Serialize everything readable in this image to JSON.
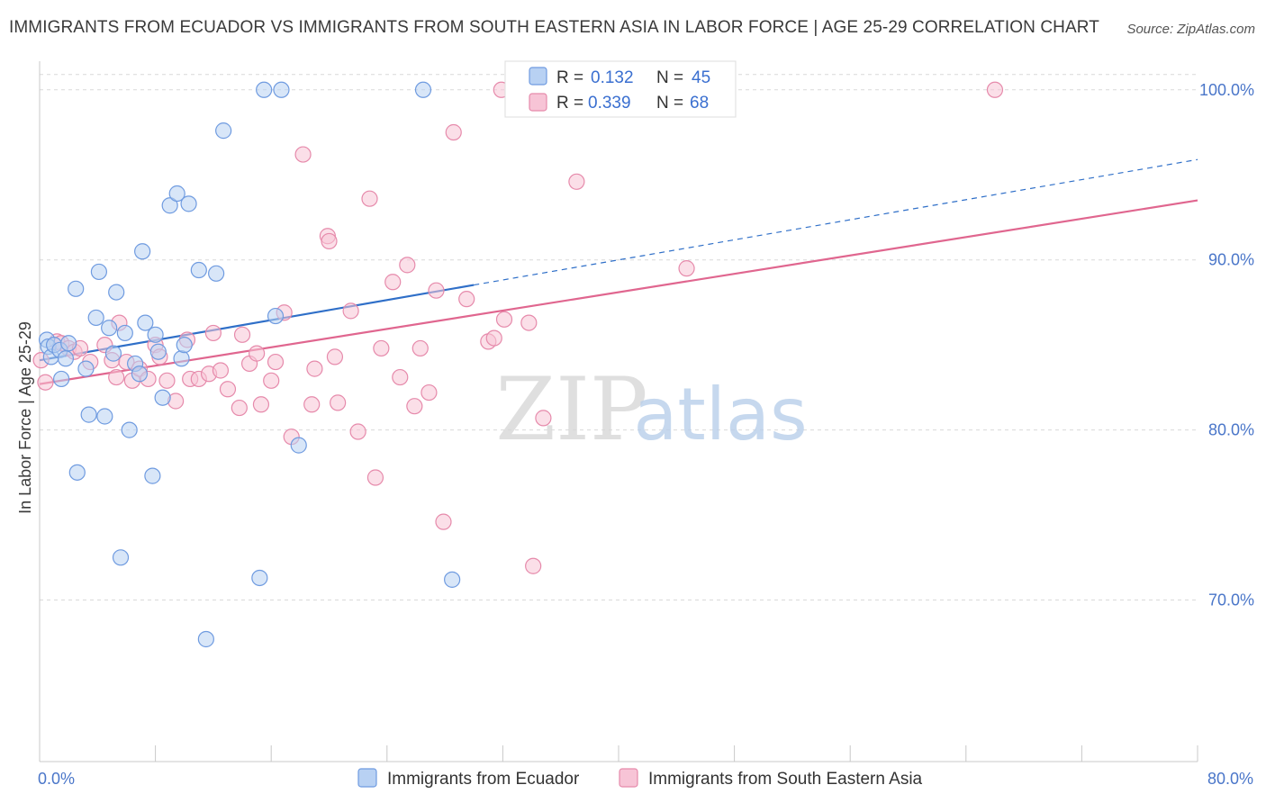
{
  "header": {
    "title": "IMMIGRANTS FROM ECUADOR VS IMMIGRANTS FROM SOUTH EASTERN ASIA IN LABOR FORCE | AGE 25-29 CORRELATION CHART",
    "source": "Source: ZipAtlas.com"
  },
  "watermark": {
    "zip": "ZIP",
    "atlas": "atlas"
  },
  "colors": {
    "ecuador_fill": "#b8d1f3",
    "ecuador_stroke": "#6f9be0",
    "ecuador_line": "#2f6fc8",
    "sea_fill": "#f7c4d6",
    "sea_stroke": "#e68aab",
    "sea_line": "#e0668f"
  },
  "legend": {
    "r_label": "R =",
    "n_label": "N =",
    "items": [
      {
        "r": "0.132",
        "n": "45"
      },
      {
        "r": "0.339",
        "n": "68"
      }
    ]
  },
  "chart_data": {
    "type": "scatter",
    "title": "IMMIGRANTS FROM ECUADOR VS IMMIGRANTS FROM SOUTH EASTERN ASIA IN LABOR FORCE | AGE 25-29 CORRELATION CHART",
    "xlabel": "",
    "ylabel": "In Labor Force | Age 25-29",
    "xlim": [
      0,
      80
    ],
    "ylim": [
      60.5,
      102
    ],
    "x_tick_labels": [
      "0.0%",
      "80.0%"
    ],
    "y_ticks": [
      70,
      80,
      90,
      100
    ],
    "y_tick_labels": [
      "70.0%",
      "80.0%",
      "90.0%",
      "100.0%"
    ],
    "grid": true,
    "legend_position": "top-center",
    "series": [
      {
        "name": "Immigrants from Ecuador",
        "points": [
          [
            0.5,
            85.3
          ],
          [
            0.6,
            84.9
          ],
          [
            0.8,
            84.3
          ],
          [
            1.0,
            85.0
          ],
          [
            1.4,
            84.7
          ],
          [
            1.5,
            83.0
          ],
          [
            1.8,
            84.2
          ],
          [
            2.0,
            85.1
          ],
          [
            2.5,
            88.3
          ],
          [
            2.6,
            77.5
          ],
          [
            3.2,
            83.6
          ],
          [
            3.4,
            80.9
          ],
          [
            3.9,
            86.6
          ],
          [
            4.1,
            89.3
          ],
          [
            4.5,
            80.8
          ],
          [
            4.8,
            86.0
          ],
          [
            5.1,
            84.5
          ],
          [
            5.3,
            88.1
          ],
          [
            5.6,
            72.5
          ],
          [
            5.9,
            85.7
          ],
          [
            6.2,
            80.0
          ],
          [
            6.6,
            83.9
          ],
          [
            6.9,
            83.3
          ],
          [
            7.1,
            90.5
          ],
          [
            7.3,
            86.3
          ],
          [
            7.8,
            77.3
          ],
          [
            8.0,
            85.6
          ],
          [
            8.2,
            84.6
          ],
          [
            8.5,
            81.9
          ],
          [
            9.0,
            93.2
          ],
          [
            9.5,
            93.9
          ],
          [
            9.8,
            84.2
          ],
          [
            10.0,
            85.0
          ],
          [
            10.3,
            93.3
          ],
          [
            11.0,
            89.4
          ],
          [
            11.5,
            67.7
          ],
          [
            12.2,
            89.2
          ],
          [
            12.7,
            97.6
          ],
          [
            15.2,
            71.3
          ],
          [
            15.5,
            100.0
          ],
          [
            16.3,
            86.7
          ],
          [
            16.7,
            100.0
          ],
          [
            17.9,
            79.1
          ],
          [
            26.5,
            100.0
          ],
          [
            28.5,
            71.2
          ]
        ]
      },
      {
        "name": "Immigrants from South Eastern Asia",
        "points": [
          [
            0.4,
            82.8
          ],
          [
            1.2,
            85.2
          ],
          [
            1.5,
            85.1
          ],
          [
            2.0,
            84.8
          ],
          [
            2.4,
            84.6
          ],
          [
            2.8,
            84.8
          ],
          [
            3.5,
            84.0
          ],
          [
            4.5,
            85.0
          ],
          [
            5.0,
            84.1
          ],
          [
            5.3,
            83.1
          ],
          [
            5.5,
            86.3
          ],
          [
            6.0,
            84.0
          ],
          [
            6.4,
            82.9
          ],
          [
            6.9,
            83.6
          ],
          [
            7.5,
            83.0
          ],
          [
            8.0,
            85.0
          ],
          [
            8.3,
            84.3
          ],
          [
            8.8,
            82.9
          ],
          [
            9.4,
            81.7
          ],
          [
            10.2,
            85.3
          ],
          [
            10.4,
            83.0
          ],
          [
            11.0,
            83.0
          ],
          [
            11.7,
            83.3
          ],
          [
            12.0,
            85.7
          ],
          [
            12.5,
            83.5
          ],
          [
            13.0,
            82.4
          ],
          [
            13.8,
            81.3
          ],
          [
            14.0,
            85.6
          ],
          [
            14.5,
            83.9
          ],
          [
            15.0,
            84.5
          ],
          [
            15.3,
            81.5
          ],
          [
            16.0,
            82.9
          ],
          [
            16.3,
            84.0
          ],
          [
            16.9,
            86.9
          ],
          [
            17.4,
            79.6
          ],
          [
            18.2,
            96.2
          ],
          [
            18.8,
            81.5
          ],
          [
            19.0,
            83.6
          ],
          [
            19.9,
            91.4
          ],
          [
            20.0,
            91.1
          ],
          [
            20.4,
            84.3
          ],
          [
            20.6,
            81.6
          ],
          [
            21.5,
            87.0
          ],
          [
            22.0,
            79.9
          ],
          [
            22.8,
            93.6
          ],
          [
            23.2,
            77.2
          ],
          [
            23.6,
            84.8
          ],
          [
            24.4,
            88.7
          ],
          [
            24.9,
            83.1
          ],
          [
            25.4,
            89.7
          ],
          [
            25.9,
            81.4
          ],
          [
            26.3,
            84.8
          ],
          [
            26.9,
            82.2
          ],
          [
            27.4,
            88.2
          ],
          [
            27.9,
            74.6
          ],
          [
            28.6,
            97.5
          ],
          [
            29.5,
            87.7
          ],
          [
            31.0,
            85.2
          ],
          [
            31.4,
            85.4
          ],
          [
            31.9,
            100.0
          ],
          [
            32.1,
            86.5
          ],
          [
            33.8,
            86.3
          ],
          [
            34.1,
            72.0
          ],
          [
            34.8,
            80.7
          ],
          [
            37.1,
            94.6
          ],
          [
            44.7,
            89.5
          ],
          [
            66.0,
            100.0
          ],
          [
            0.1,
            84.1
          ]
        ]
      }
    ],
    "trendlines": [
      {
        "series": "Immigrants from Ecuador",
        "x0": 0,
        "y0": 84.1,
        "x1": 80,
        "y1": 95.9,
        "solid_until_x": 30
      },
      {
        "series": "Immigrants from South Eastern Asia",
        "x0": 0,
        "y0": 82.7,
        "x1": 80,
        "y1": 93.5
      }
    ]
  },
  "bottom_legend": [
    {
      "label": "Immigrants from Ecuador"
    },
    {
      "label": "Immigrants from South Eastern Asia"
    }
  ]
}
